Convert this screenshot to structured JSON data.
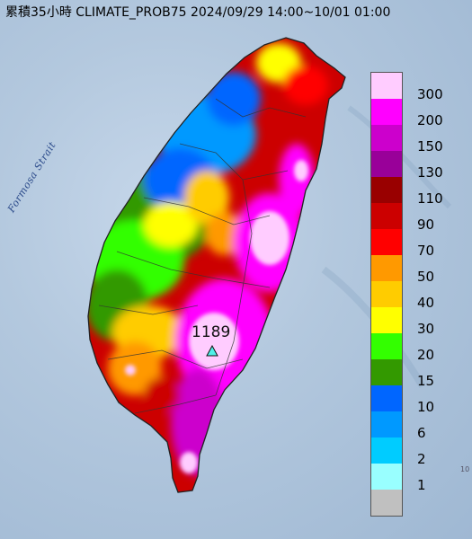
{
  "title": "累積35小時 CLIMATE_PROB75 2024/09/29 14:00~10/01 01:00",
  "sea_label": "Formosa Strait",
  "max_value_label": "1189",
  "max_marker_icon": "triangle-icon",
  "legend": {
    "categories": [
      {
        "label": "300",
        "color": "#ffccff"
      },
      {
        "label": "200",
        "color": "#ff00ff"
      },
      {
        "label": "150",
        "color": "#cc00cc"
      },
      {
        "label": "130",
        "color": "#990099"
      },
      {
        "label": "110",
        "color": "#990000"
      },
      {
        "label": "90",
        "color": "#cc0000"
      },
      {
        "label": "70",
        "color": "#ff0000"
      },
      {
        "label": "50",
        "color": "#ff9900"
      },
      {
        "label": "40",
        "color": "#ffcc00"
      },
      {
        "label": "30",
        "color": "#ffff00"
      },
      {
        "label": "20",
        "color": "#33ff00"
      },
      {
        "label": "15",
        "color": "#339900"
      },
      {
        "label": "10",
        "color": "#0066ff"
      },
      {
        "label": "6",
        "color": "#0099ff"
      },
      {
        "label": "2",
        "color": "#00ccff"
      },
      {
        "label": "1",
        "color": "#99ffff"
      },
      {
        "label": "",
        "color": "#c0c0c0"
      }
    ]
  },
  "corner_text": "10"
}
